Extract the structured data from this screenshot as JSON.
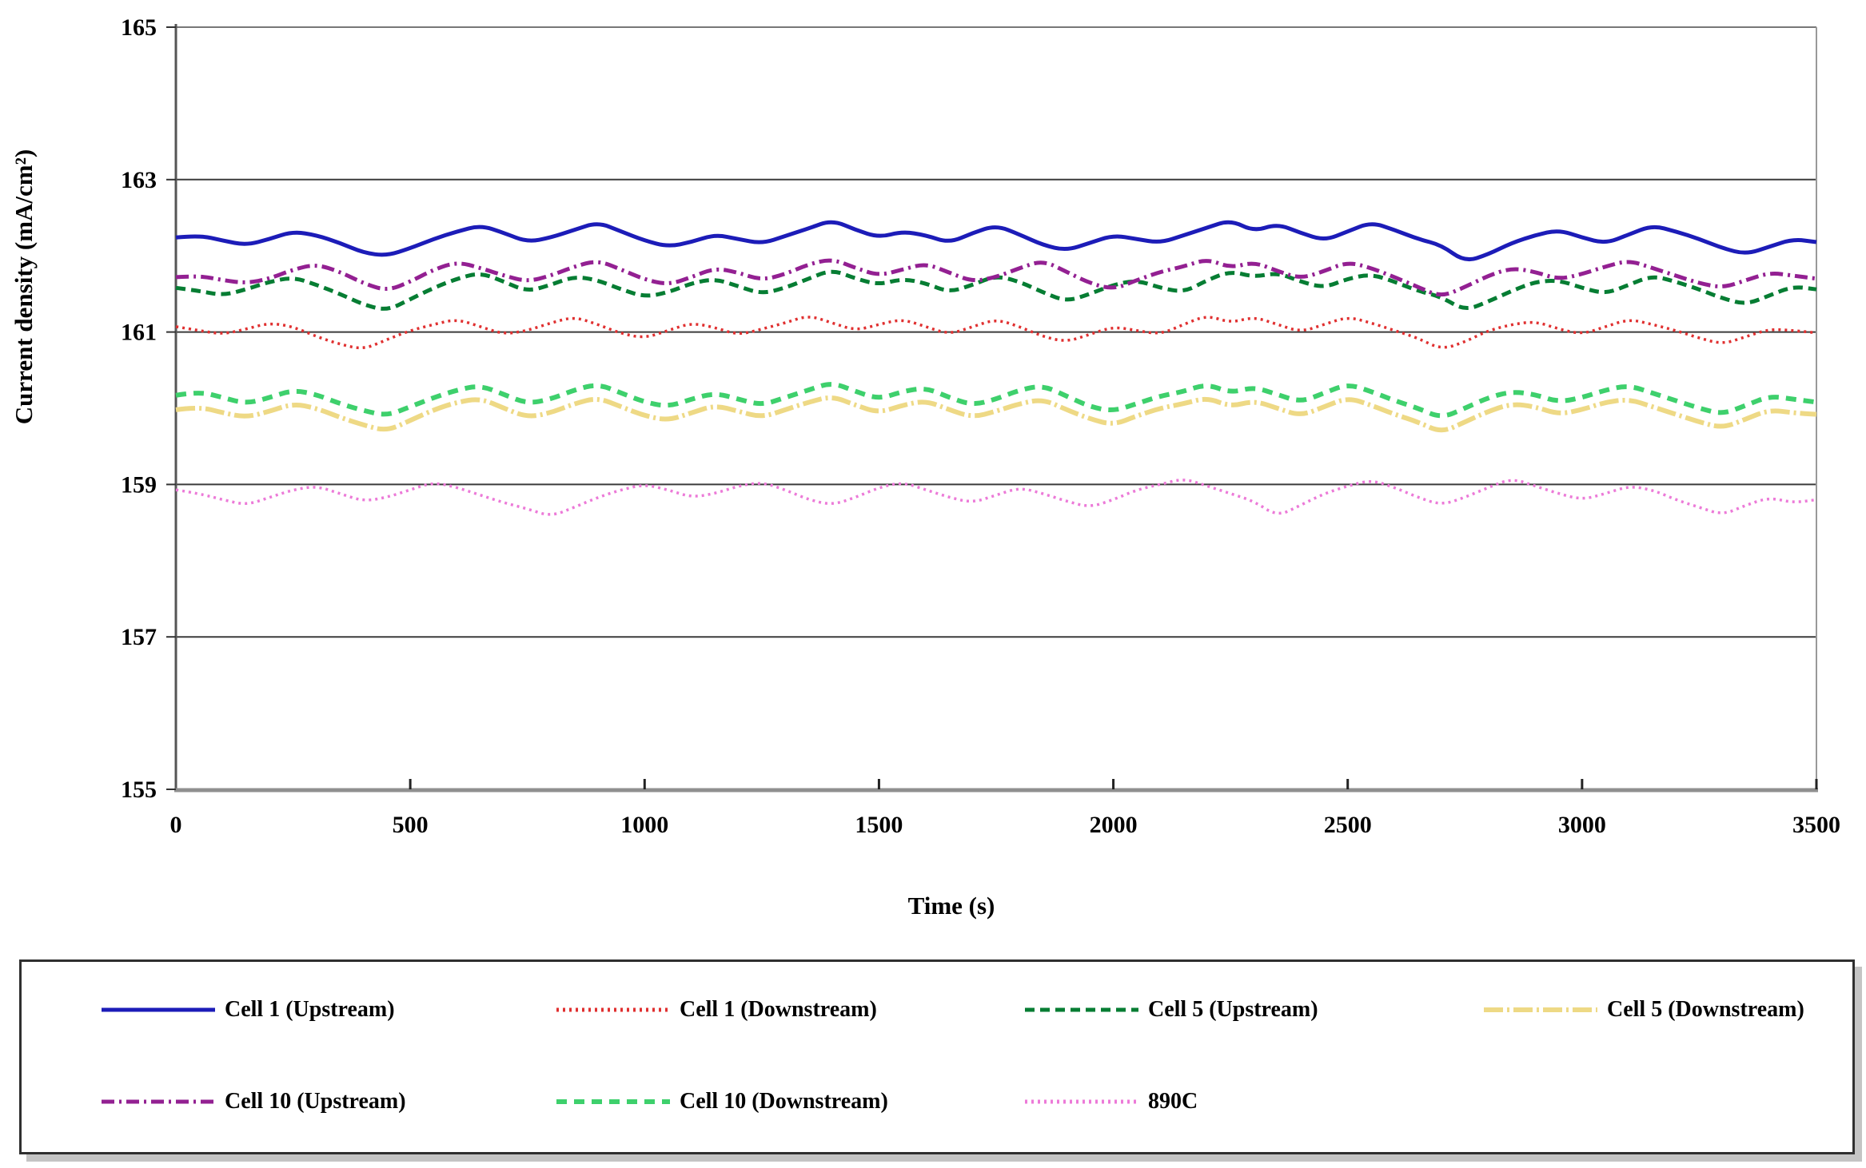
{
  "chart_data": {
    "type": "line",
    "title": "",
    "xlabel": "Time (s)",
    "ylabel": "Current density (mA/cm²)",
    "xlim": [
      0,
      3500
    ],
    "ylim": [
      155,
      165
    ],
    "x_ticks": [
      0,
      500,
      1000,
      1500,
      2000,
      2500,
      3000,
      3500
    ],
    "y_ticks": [
      155,
      157,
      159,
      161,
      163,
      165
    ],
    "grid": "horizontal",
    "legend_position": "bottom-box",
    "x_step": 50,
    "draw_order": [
      6,
      3,
      5,
      1,
      2,
      4,
      0
    ],
    "series": [
      {
        "name": "Cell 1 (Upstream)",
        "color": "#1c1cb8",
        "style": "solid",
        "width": 5,
        "mean": 162.22,
        "dev": [
          0.02,
          0.05,
          -0.02,
          -0.08,
          0.0,
          0.1,
          0.05,
          -0.05,
          -0.18,
          -0.22,
          -0.12,
          0.0,
          0.1,
          0.18,
          0.08,
          -0.04,
          0.02,
          0.12,
          0.22,
          0.1,
          -0.02,
          -0.1,
          -0.04,
          0.06,
          0.0,
          -0.06,
          0.04,
          0.14,
          0.25,
          0.12,
          0.02,
          0.1,
          0.05,
          -0.05,
          0.08,
          0.18,
          0.06,
          -0.08,
          -0.15,
          -0.05,
          0.05,
          0.0,
          -0.05,
          0.05,
          0.15,
          0.25,
          0.1,
          0.2,
          0.08,
          -0.02,
          0.1,
          0.22,
          0.12,
          0.0,
          -0.08,
          -0.3,
          -0.2,
          -0.05,
          0.05,
          0.12,
          0.02,
          -0.06,
          0.06,
          0.18,
          0.1,
          0.0,
          -0.12,
          -0.2,
          -0.1,
          0.0,
          -0.04
        ]
      },
      {
        "name": "Cell 1 (Downstream)",
        "color": "#e03030",
        "style": "dotted",
        "width": 3.5,
        "mean": 161.02,
        "dev": [
          0.05,
          0.0,
          -0.05,
          0.02,
          0.1,
          0.05,
          -0.08,
          -0.18,
          -0.25,
          -0.12,
          0.0,
          0.08,
          0.15,
          0.05,
          -0.05,
          0.0,
          0.1,
          0.18,
          0.08,
          -0.04,
          -0.1,
          0.0,
          0.1,
          0.04,
          -0.06,
          0.02,
          0.1,
          0.2,
          0.1,
          0.0,
          0.08,
          0.15,
          0.05,
          -0.05,
          0.05,
          0.15,
          0.05,
          -0.08,
          -0.15,
          -0.05,
          0.05,
          0.0,
          -0.05,
          0.08,
          0.2,
          0.1,
          0.18,
          0.08,
          -0.02,
          0.08,
          0.18,
          0.1,
          0.0,
          -0.1,
          -0.25,
          -0.15,
          0.0,
          0.08,
          0.12,
          0.02,
          -0.05,
          0.05,
          0.15,
          0.08,
          0.0,
          -0.1,
          -0.18,
          -0.08,
          0.02,
          0.0,
          -0.03
        ]
      },
      {
        "name": "Cell 5 (Upstream)",
        "color": "#067d33",
        "style": "dashed",
        "width": 5,
        "mean": 161.58,
        "dev": [
          0.0,
          -0.04,
          -0.1,
          -0.02,
          0.08,
          0.14,
          0.04,
          -0.08,
          -0.22,
          -0.3,
          -0.15,
          0.0,
          0.12,
          0.2,
          0.08,
          -0.05,
          0.04,
          0.15,
          0.1,
          -0.02,
          -0.12,
          -0.06,
          0.06,
          0.12,
          0.02,
          -0.08,
          0.0,
          0.12,
          0.24,
          0.12,
          0.04,
          0.12,
          0.06,
          -0.06,
          0.04,
          0.16,
          0.08,
          -0.06,
          -0.18,
          -0.08,
          0.04,
          0.1,
          0.0,
          -0.06,
          0.1,
          0.22,
          0.14,
          0.2,
          0.08,
          0.0,
          0.12,
          0.18,
          0.08,
          -0.04,
          -0.12,
          -0.3,
          -0.18,
          -0.04,
          0.08,
          0.1,
          0.0,
          -0.08,
          0.04,
          0.16,
          0.08,
          -0.02,
          -0.14,
          -0.22,
          -0.1,
          0.02,
          -0.02
        ]
      },
      {
        "name": "Cell 5 (Downstream)",
        "color": "#eed985",
        "style": "longdashdot",
        "width": 6,
        "mean": 159.98,
        "dev": [
          0.0,
          0.04,
          -0.04,
          -0.1,
          -0.02,
          0.08,
          0.02,
          -0.1,
          -0.2,
          -0.28,
          -0.14,
          0.0,
          0.1,
          0.15,
          0.02,
          -0.1,
          -0.04,
          0.08,
          0.16,
          0.04,
          -0.08,
          -0.14,
          -0.04,
          0.06,
          -0.02,
          -0.1,
          0.0,
          0.1,
          0.18,
          0.06,
          -0.04,
          0.06,
          0.12,
          0.0,
          -0.1,
          -0.02,
          0.08,
          0.14,
          0.0,
          -0.12,
          -0.2,
          -0.08,
          0.02,
          0.08,
          0.16,
          0.04,
          0.12,
          0.02,
          -0.08,
          0.04,
          0.16,
          0.06,
          -0.06,
          -0.16,
          -0.3,
          -0.16,
          -0.02,
          0.08,
          0.04,
          -0.06,
          0.0,
          0.1,
          0.14,
          0.04,
          -0.06,
          -0.16,
          -0.24,
          -0.12,
          0.0,
          -0.04,
          -0.06
        ]
      },
      {
        "name": "Cell 10 (Upstream)",
        "color": "#932092",
        "style": "dashdot",
        "width": 5,
        "mean": 161.74,
        "dev": [
          -0.02,
          0.0,
          -0.06,
          -0.1,
          -0.04,
          0.08,
          0.15,
          0.05,
          -0.1,
          -0.2,
          -0.08,
          0.08,
          0.18,
          0.1,
          0.0,
          -0.08,
          0.0,
          0.12,
          0.2,
          0.08,
          -0.05,
          -0.12,
          -0.02,
          0.1,
          0.04,
          -0.06,
          0.02,
          0.15,
          0.22,
          0.1,
          0.0,
          0.08,
          0.16,
          0.04,
          -0.08,
          -0.02,
          0.1,
          0.2,
          0.05,
          -0.1,
          -0.18,
          -0.06,
          0.05,
          0.12,
          0.22,
          0.1,
          0.18,
          0.06,
          -0.04,
          0.06,
          0.18,
          0.1,
          -0.02,
          -0.15,
          -0.28,
          -0.15,
          0.0,
          0.1,
          0.05,
          -0.05,
          0.02,
          0.12,
          0.2,
          0.1,
          0.0,
          -0.1,
          -0.16,
          -0.06,
          0.04,
          0.0,
          -0.04
        ]
      },
      {
        "name": "Cell 10 (Downstream)",
        "color": "#3ed06c",
        "style": "dashedwide",
        "width": 6,
        "mean": 160.12,
        "dev": [
          0.05,
          0.1,
          0.02,
          -0.06,
          0.02,
          0.12,
          0.06,
          -0.06,
          -0.15,
          -0.22,
          -0.1,
          0.02,
          0.12,
          0.18,
          0.06,
          -0.06,
          0.0,
          0.12,
          0.2,
          0.08,
          -0.04,
          -0.1,
          0.0,
          0.08,
          0.0,
          -0.08,
          0.02,
          0.12,
          0.22,
          0.1,
          0.0,
          0.1,
          0.15,
          0.02,
          -0.08,
          0.0,
          0.12,
          0.18,
          0.04,
          -0.1,
          -0.16,
          -0.06,
          0.04,
          0.1,
          0.2,
          0.08,
          0.16,
          0.06,
          -0.04,
          0.08,
          0.2,
          0.1,
          -0.02,
          -0.12,
          -0.25,
          -0.12,
          0.02,
          0.1,
          0.06,
          -0.04,
          0.02,
          0.12,
          0.18,
          0.08,
          -0.02,
          -0.12,
          -0.2,
          -0.08,
          0.04,
          0.0,
          -0.04
        ]
      },
      {
        "name": "890C",
        "color": "#ec7ad8",
        "style": "dotted",
        "width": 3.5,
        "mean": 158.88,
        "dev": [
          0.05,
          0.0,
          -0.08,
          -0.15,
          -0.05,
          0.05,
          0.1,
          0.0,
          -0.1,
          -0.05,
          0.05,
          0.15,
          0.08,
          -0.02,
          -0.12,
          -0.2,
          -0.3,
          -0.18,
          -0.05,
          0.05,
          0.12,
          0.05,
          -0.05,
          0.0,
          0.1,
          0.15,
          0.05,
          -0.08,
          -0.15,
          -0.05,
          0.08,
          0.15,
          0.05,
          -0.05,
          -0.12,
          -0.02,
          0.08,
          0.0,
          -0.1,
          -0.18,
          -0.08,
          0.05,
          0.12,
          0.2,
          0.1,
          0.0,
          -0.1,
          -0.3,
          -0.15,
          0.0,
          0.1,
          0.18,
          0.08,
          -0.05,
          -0.15,
          -0.05,
          0.08,
          0.2,
          0.1,
          0.0,
          -0.08,
          0.0,
          0.1,
          0.05,
          -0.08,
          -0.18,
          -0.28,
          -0.15,
          -0.05,
          -0.12,
          -0.08
        ]
      }
    ]
  },
  "legend": {
    "items": [
      {
        "label": "Cell 1 (Upstream)"
      },
      {
        "label": "Cell 1 (Downstream)"
      },
      {
        "label": "Cell 5 (Upstream)"
      },
      {
        "label": "Cell 5 (Downstream)"
      },
      {
        "label": "Cell 10 (Upstream)"
      },
      {
        "label": "Cell 10 (Downstream)"
      },
      {
        "label": "890C"
      }
    ]
  }
}
